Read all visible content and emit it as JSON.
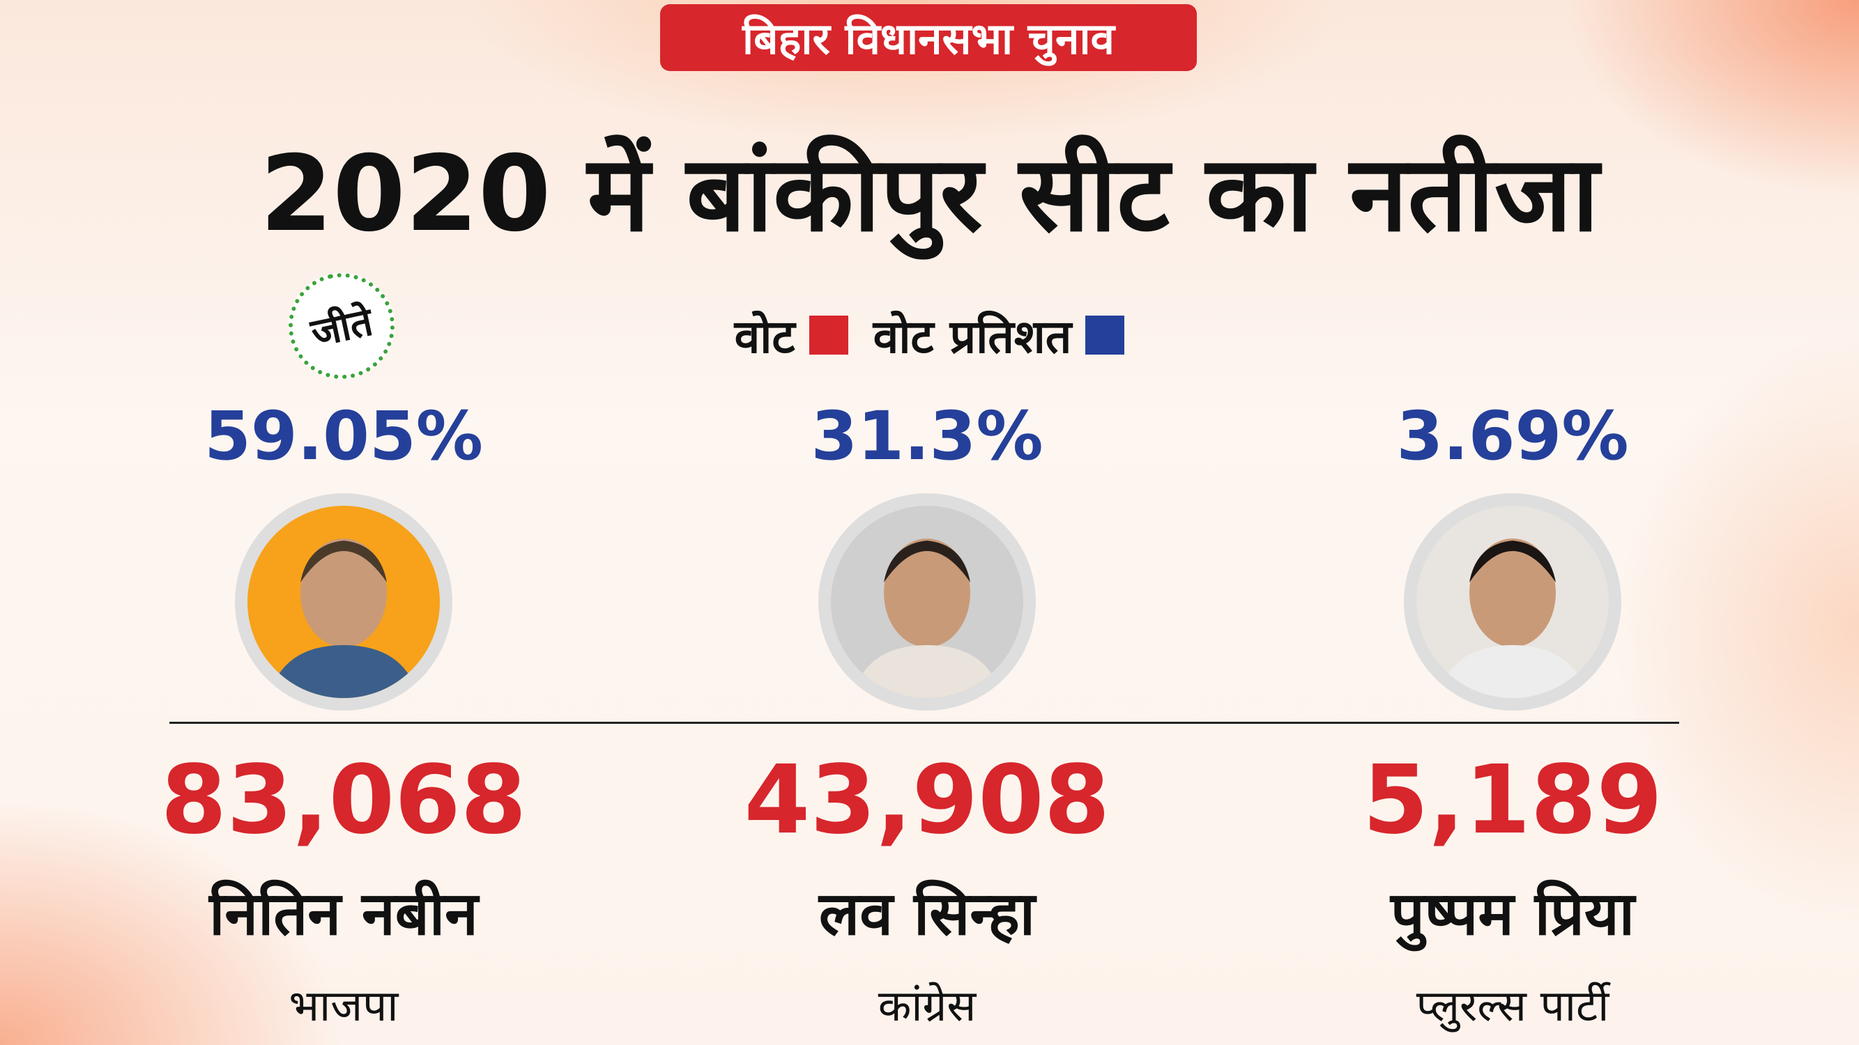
{
  "header": {
    "badge": "बिहार विधानसभा चुनाव",
    "title": "2020 में बांकीपुर सीट का नतीजा"
  },
  "legend": {
    "items": [
      {
        "label": "वोट",
        "color": "#d7262c"
      },
      {
        "label": "वोट प्रतिशत",
        "color": "#25409a"
      }
    ]
  },
  "winner_badge": "जीते",
  "candidates": [
    {
      "vote_percent": "59.05%",
      "votes": "83,068",
      "name": "नितिन नबीन",
      "party": "भाजपा"
    },
    {
      "vote_percent": "31.3%",
      "votes": "43,908",
      "name": "लव सिन्हा",
      "party": "कांग्रेस"
    },
    {
      "vote_percent": "3.69%",
      "votes": "5,189",
      "name": "पुष्पम प्रिया",
      "party": "प्लुरल्स पार्टी"
    }
  ]
}
